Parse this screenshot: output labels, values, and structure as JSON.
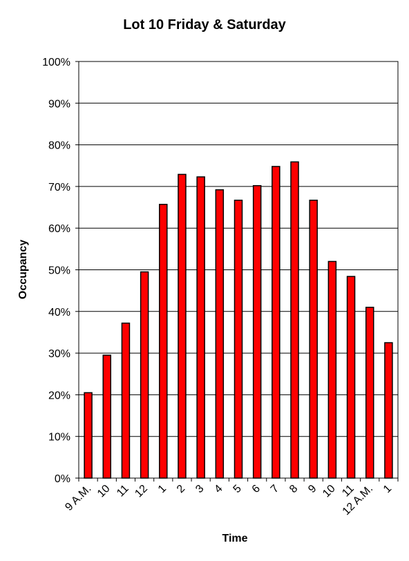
{
  "chart_data": {
    "type": "bar",
    "title": "Lot 10 Friday & Saturday",
    "xlabel": "Time",
    "ylabel": "Occupancy",
    "categories": [
      "9 A.M.",
      "10",
      "11",
      "12",
      "1",
      "2",
      "3",
      "4",
      "5",
      "6",
      "7",
      "8",
      "9",
      "10",
      "11",
      "12 A.M.",
      "1"
    ],
    "values": [
      20.5,
      29.5,
      37.2,
      49.5,
      65.7,
      72.9,
      72.3,
      69.2,
      66.7,
      70.2,
      74.8,
      75.9,
      66.7,
      52.0,
      48.4,
      41.0,
      32.5
    ],
    "ylim": [
      0,
      100
    ],
    "yticks": [
      "0%",
      "10%",
      "20%",
      "30%",
      "40%",
      "50%",
      "60%",
      "70%",
      "80%",
      "90%",
      "100%"
    ],
    "grid": true,
    "bar_color": "#ff0000",
    "legend": "none"
  }
}
